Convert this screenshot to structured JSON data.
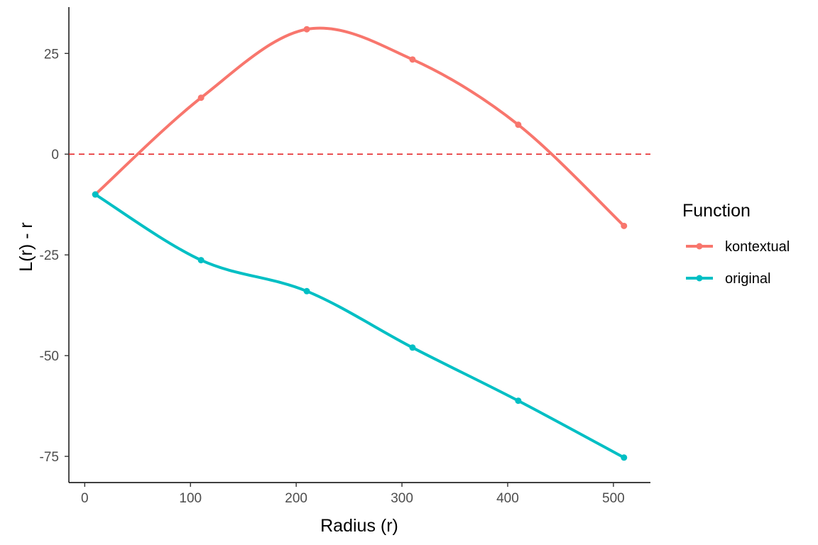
{
  "chart_data": {
    "type": "line",
    "xlabel": "Radius (r)",
    "ylabel": "L(r) - r",
    "xlim": [
      -15,
      535
    ],
    "ylim": [
      -81.5,
      36.5
    ],
    "x_ticks": [
      0,
      100,
      200,
      300,
      400,
      500
    ],
    "y_ticks": [
      -75,
      -50,
      -25,
      0,
      25
    ],
    "x_tick_labels": [
      "0",
      "100",
      "200",
      "300",
      "400",
      "500"
    ],
    "y_tick_labels": [
      "-75",
      "-50",
      "-25",
      "0",
      "25"
    ],
    "grid": false,
    "reference_line": {
      "y": 0,
      "style": "dashed",
      "color": "#e31a1c"
    },
    "legend": {
      "title": "Function",
      "position": "right"
    },
    "x": [
      10,
      110,
      210,
      310,
      410,
      510
    ],
    "series": [
      {
        "name": "kontextual",
        "color": "#f8766d",
        "values": [
          -10.0,
          14.0,
          31.0,
          23.5,
          7.3,
          -17.8
        ]
      },
      {
        "name": "original",
        "color": "#00bfc4",
        "values": [
          -10.0,
          -26.3,
          -34.0,
          -48.0,
          -61.2,
          -75.3
        ]
      }
    ]
  }
}
